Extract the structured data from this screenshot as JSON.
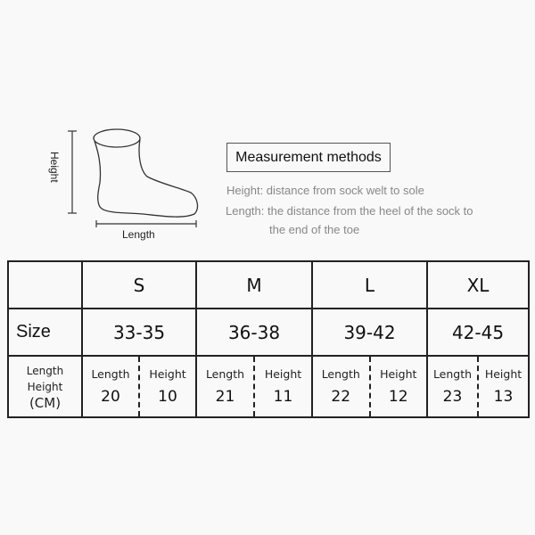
{
  "diagram": {
    "height_label": "Height",
    "length_label": "Length"
  },
  "measurement": {
    "title": "Measurement methods",
    "height_desc": "Height: distance from sock welt to sole",
    "length_desc_1": "Length: the distance from the heel of the sock to",
    "length_desc_2": "the end of the toe"
  },
  "table": {
    "size_label": "Size",
    "unit_lines": [
      "Length",
      "Height",
      "(CM)"
    ],
    "length_header": "Length",
    "height_header": "Height",
    "sizes": [
      {
        "name": "S",
        "range": "33-35",
        "length": "20",
        "height": "10"
      },
      {
        "name": "M",
        "range": "36-38",
        "length": "21",
        "height": "11"
      },
      {
        "name": "L",
        "range": "39-42",
        "length": "22",
        "height": "12"
      },
      {
        "name": "XL",
        "range": "42-45",
        "length": "23",
        "height": "13"
      }
    ]
  }
}
